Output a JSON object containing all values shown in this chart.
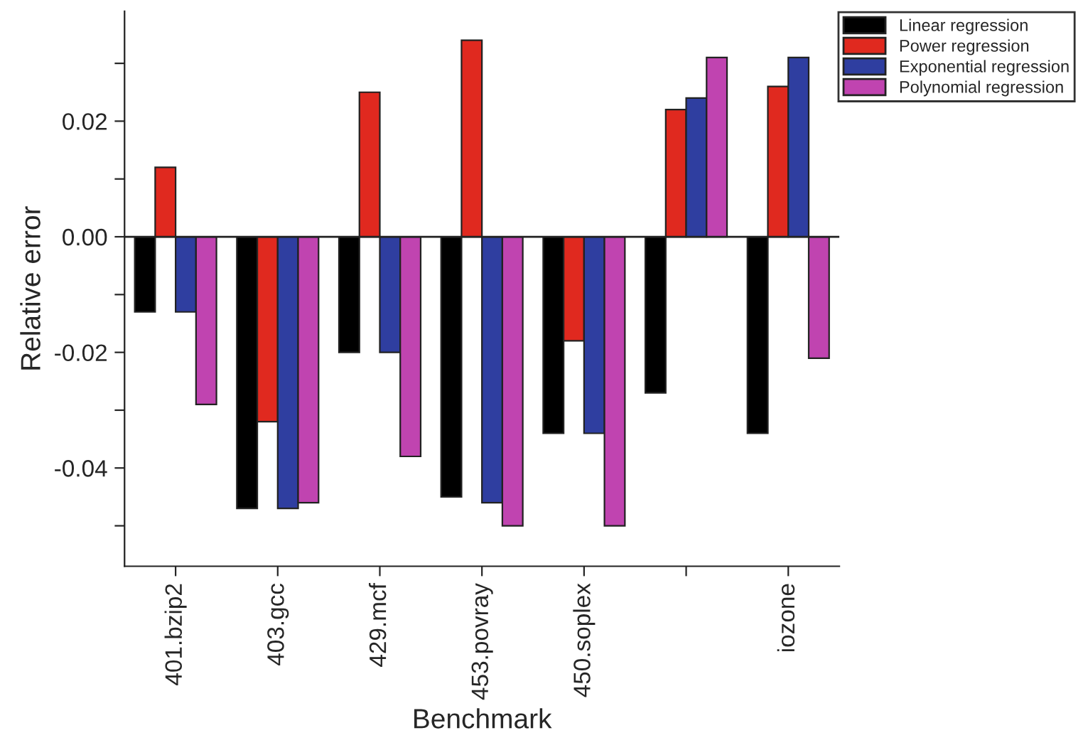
{
  "chart_data": {
    "type": "bar",
    "xlabel": "Benchmark",
    "ylabel": "Relative error",
    "categories": [
      "401.bzip2",
      "403.gcc",
      "429.mcf",
      "453.povray",
      "450.soplex",
      null,
      "iozone"
    ],
    "series": [
      {
        "name": "Linear regression",
        "color": "#000000",
        "values": [
          -0.013,
          -0.047,
          -0.02,
          -0.045,
          -0.034,
          -0.027,
          -0.034
        ]
      },
      {
        "name": "Power regression",
        "color": "#e0291f",
        "values": [
          0.012,
          -0.032,
          0.025,
          0.034,
          -0.018,
          0.022,
          0.026
        ]
      },
      {
        "name": "Exponential regression",
        "color": "#2f3ea0",
        "values": [
          -0.013,
          -0.047,
          -0.02,
          -0.046,
          -0.034,
          0.024,
          0.031
        ]
      },
      {
        "name": "Polynomial regression",
        "color": "#c044b0",
        "values": [
          -0.029,
          -0.046,
          -0.038,
          -0.05,
          -0.05,
          0.031,
          -0.021
        ]
      }
    ],
    "ylim": [
      -0.057,
      0.039
    ],
    "yticks": [
      {
        "value": -0.05,
        "label": null
      },
      {
        "value": -0.04,
        "label": "-0.04"
      },
      {
        "value": -0.03,
        "label": null
      },
      {
        "value": -0.02,
        "label": "-0.02"
      },
      {
        "value": -0.01,
        "label": null
      },
      {
        "value": 0,
        "label": "0.00"
      },
      {
        "value": 0.01,
        "label": null
      },
      {
        "value": 0.02,
        "label": "0.02"
      },
      {
        "value": 0.03,
        "label": null
      }
    ],
    "ref_lines": [
      {
        "axis": "y",
        "value": 0
      }
    ],
    "legend": "top right",
    "grid": false
  }
}
